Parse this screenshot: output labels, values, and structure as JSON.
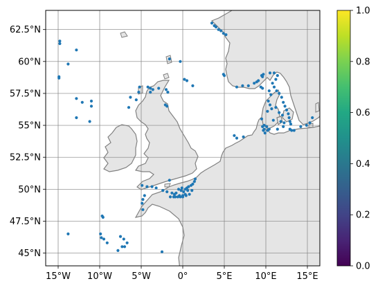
{
  "chart_data": {
    "type": "scatter",
    "projection": "PlateCarree",
    "lon_range": [
      -16.5,
      16.5
    ],
    "lat_range": [
      44.0,
      64.0
    ],
    "grid": true,
    "x_ticks": [
      {
        "value": -15,
        "label": "15°W"
      },
      {
        "value": -10,
        "label": "10°W"
      },
      {
        "value": -5,
        "label": "5°W"
      },
      {
        "value": 0,
        "label": "0°"
      },
      {
        "value": 5,
        "label": "5°E"
      },
      {
        "value": 10,
        "label": "10°E"
      },
      {
        "value": 15,
        "label": "15°E"
      }
    ],
    "y_ticks": [
      {
        "value": 45,
        "label": "45°N"
      },
      {
        "value": 47.5,
        "label": "47.5°N"
      },
      {
        "value": 50,
        "label": "50°N"
      },
      {
        "value": 52.5,
        "label": "52.5°N"
      },
      {
        "value": 55,
        "label": "55°N"
      },
      {
        "value": 57.5,
        "label": "57.5°N"
      },
      {
        "value": 60,
        "label": "60°N"
      },
      {
        "value": 62.5,
        "label": "62.5°N"
      }
    ],
    "colorbar": {
      "colormap": "viridis",
      "range": [
        0.0,
        1.0
      ],
      "ticks": [
        {
          "value": 0.0,
          "label": "0.0"
        },
        {
          "value": 0.2,
          "label": "0.2"
        },
        {
          "value": 0.4,
          "label": "0.4"
        },
        {
          "value": 0.6,
          "label": "0.6"
        },
        {
          "value": 0.8,
          "label": "0.8"
        },
        {
          "value": 1.0,
          "label": "1.0"
        }
      ]
    },
    "marker_color": "#1f77b4",
    "land_color": "#e5e5e5",
    "coast_color": "#808080",
    "points": [
      [
        -14.8,
        61.6
      ],
      [
        -14.8,
        61.4
      ],
      [
        -12.8,
        60.9
      ],
      [
        -13.8,
        59.8
      ],
      [
        -14.9,
        58.8
      ],
      [
        -14.9,
        58.7
      ],
      [
        -12.8,
        57.1
      ],
      [
        -12.1,
        56.8
      ],
      [
        -11.0,
        56.9
      ],
      [
        -11.0,
        56.5
      ],
      [
        -12.8,
        55.6
      ],
      [
        -11.2,
        55.3
      ],
      [
        -4.2,
        58.0
      ],
      [
        -3.9,
        57.9
      ],
      [
        -3.6,
        57.8
      ],
      [
        -3.9,
        57.6
      ],
      [
        -5.2,
        58.0
      ],
      [
        -5.3,
        57.6
      ],
      [
        -5.6,
        57.0
      ],
      [
        -6.3,
        57.2
      ],
      [
        -6.5,
        56.4
      ],
      [
        -2.9,
        57.9
      ],
      [
        -2.0,
        57.8
      ],
      [
        -1.8,
        57.6
      ],
      [
        -2.1,
        56.6
      ],
      [
        -1.9,
        56.5
      ],
      [
        -1.6,
        60.2
      ],
      [
        -0.3,
        60.0
      ],
      [
        0.2,
        58.6
      ],
      [
        0.5,
        58.5
      ],
      [
        1.2,
        58.1
      ],
      [
        3.5,
        63.0
      ],
      [
        3.8,
        62.8
      ],
      [
        4.0,
        62.7
      ],
      [
        4.3,
        62.5
      ],
      [
        4.6,
        62.4
      ],
      [
        4.9,
        62.2
      ],
      [
        5.2,
        62.1
      ],
      [
        4.9,
        59.0
      ],
      [
        5.0,
        58.9
      ],
      [
        6.5,
        58.0
      ],
      [
        7.2,
        58.1
      ],
      [
        7.9,
        58.1
      ],
      [
        8.6,
        58.3
      ],
      [
        8.9,
        58.4
      ],
      [
        9.1,
        58.5
      ],
      [
        9.5,
        58.9
      ],
      [
        9.7,
        59.0
      ],
      [
        9.6,
        58.8
      ],
      [
        10.5,
        59.1
      ],
      [
        11.0,
        59.1
      ],
      [
        11.4,
        58.9
      ],
      [
        11.2,
        58.6
      ],
      [
        10.8,
        58.3
      ],
      [
        11.0,
        58.0
      ],
      [
        11.3,
        57.7
      ],
      [
        11.6,
        57.5
      ],
      [
        11.9,
        57.2
      ],
      [
        12.1,
        56.8
      ],
      [
        12.3,
        56.5
      ],
      [
        12.5,
        56.2
      ],
      [
        12.7,
        55.9
      ],
      [
        12.8,
        55.6
      ],
      [
        12.9,
        55.3
      ],
      [
        9.4,
        58.0
      ],
      [
        9.6,
        57.9
      ],
      [
        10.4,
        57.7
      ],
      [
        10.6,
        57.4
      ],
      [
        10.3,
        56.9
      ],
      [
        10.5,
        56.6
      ],
      [
        10.2,
        56.1
      ],
      [
        10.7,
        56.3
      ],
      [
        11.2,
        56.4
      ],
      [
        11.6,
        56.0
      ],
      [
        12.0,
        55.8
      ],
      [
        10.9,
        55.4
      ],
      [
        11.8,
        55.3
      ],
      [
        12.2,
        55.2
      ],
      [
        12.1,
        54.9
      ],
      [
        11.4,
        54.7
      ],
      [
        13.0,
        55.1
      ],
      [
        13.4,
        54.6
      ],
      [
        9.5,
        55.5
      ],
      [
        9.8,
        55.0
      ],
      [
        10.1,
        54.9
      ],
      [
        10.4,
        54.7
      ],
      [
        9.7,
        54.6
      ],
      [
        9.9,
        54.4
      ],
      [
        9.6,
        54.9
      ],
      [
        9.8,
        54.7
      ],
      [
        10.2,
        54.6
      ],
      [
        6.2,
        54.2
      ],
      [
        6.5,
        54.0
      ],
      [
        7.3,
        54.1
      ],
      [
        12.9,
        54.7
      ],
      [
        14.2,
        54.9
      ],
      [
        14.9,
        55.0
      ],
      [
        15.3,
        55.2
      ],
      [
        15.6,
        55.6
      ],
      [
        13.1,
        54.6
      ],
      [
        -3.7,
        50.2
      ],
      [
        -3.2,
        50.1
      ],
      [
        -2.4,
        49.9
      ],
      [
        -1.9,
        49.8
      ],
      [
        -1.3,
        49.7
      ],
      [
        -0.8,
        49.7
      ],
      [
        -0.4,
        49.5
      ],
      [
        0.0,
        49.5
      ],
      [
        0.3,
        49.6
      ],
      [
        -4.6,
        49.5
      ],
      [
        -4.8,
        49.2
      ],
      [
        -4.9,
        48.9
      ],
      [
        -4.8,
        48.4
      ],
      [
        -0.9,
        49.4
      ],
      [
        -1.0,
        49.6
      ],
      [
        0.1,
        49.8
      ],
      [
        0.3,
        50.0
      ],
      [
        0.5,
        50.1
      ],
      [
        0.7,
        50.2
      ],
      [
        1.0,
        50.3
      ],
      [
        1.2,
        50.4
      ],
      [
        1.4,
        50.6
      ],
      [
        1.5,
        50.8
      ],
      [
        -0.2,
        49.9
      ],
      [
        -0.1,
        50.1
      ],
      [
        0.4,
        49.5
      ],
      [
        0.8,
        49.6
      ],
      [
        1.1,
        49.9
      ],
      [
        0.6,
        49.9
      ],
      [
        -1.5,
        49.4
      ],
      [
        -1.1,
        49.4
      ],
      [
        -0.6,
        49.4
      ],
      [
        -0.3,
        49.4
      ],
      [
        0.0,
        49.4
      ],
      [
        -0.5,
        50.0
      ],
      [
        -1.6,
        50.7
      ],
      [
        -4.9,
        50.3
      ],
      [
        -4.3,
        50.2
      ],
      [
        -9.7,
        47.9
      ],
      [
        -9.6,
        47.8
      ],
      [
        -13.8,
        46.5
      ],
      [
        -9.9,
        46.5
      ],
      [
        -9.8,
        46.2
      ],
      [
        -9.5,
        46.1
      ],
      [
        -9.1,
        45.8
      ],
      [
        -7.5,
        46.3
      ],
      [
        -7.1,
        46.1
      ],
      [
        -6.7,
        45.8
      ],
      [
        -7.8,
        45.2
      ],
      [
        -7.3,
        45.5
      ],
      [
        -7.0,
        45.5
      ],
      [
        -2.5,
        45.1
      ]
    ]
  }
}
